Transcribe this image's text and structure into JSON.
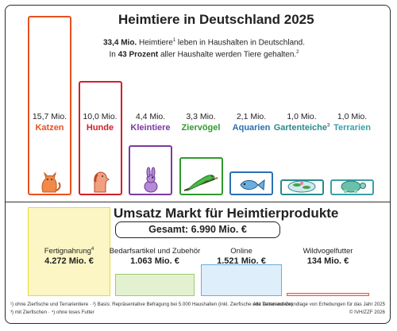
{
  "header": {
    "title": "Heimtiere in Deutschland 2025",
    "sub_line1_bold": "33,4 Mio.",
    "sub_line1_text": " Heimtiere",
    "sub_line1_sup": "1",
    "sub_line1_rest": " leben in Haushalten in Deutschland.",
    "sub_line2_start": "In ",
    "sub_line2_bold": "43 Prozent",
    "sub_line2_rest": " aller Haushalte werden Tiere gehalten.",
    "sub_line2_sup": "2"
  },
  "market": {
    "title": "Umsatz Markt für Heimtierprodukte",
    "total_text": "Gesamt: 6.990 Mio. €"
  },
  "footer": {
    "note_left_1": "¹) ohne Zierfische und Terrarientiere · ²) Basis: Repräsentative Befragung bei 5.000 Haushalten (inkl. Zierfische und Terrarientiere)",
    "note_left_2": "³) mit Zierfischen · ⁴) ohne loses Futter",
    "note_right_1": "Alle Daten auf Grundlage von Erhebungen für das Jahr 2025",
    "note_right_2": "© IVH/ZZF 2026"
  },
  "colors": {
    "katzen": "#e8501e",
    "hunde": "#d0202a",
    "kleintiere": "#7a3aa0",
    "ziervoegel": "#2f9a2f",
    "aquarien": "#2a6fb0",
    "gartenteiche": "#2a8a8c",
    "terrarien": "#3aa0a8",
    "fertignahrung": "#e6dc3c",
    "bedarf": "#9ccc68",
    "online": "#6aaee0",
    "wildvogel": "#e85a3c"
  },
  "chart_data": [
    {
      "type": "bar",
      "title": "Heimtiere in Deutschland 2025",
      "categories": [
        "Katzen",
        "Hunde",
        "Kleintiere",
        "Ziervögel",
        "Aquarien",
        "Gartenteiche",
        "Terrarien"
      ],
      "category_superscripts": [
        "",
        "",
        "",
        "",
        "",
        "3",
        ""
      ],
      "unit": "Mio.",
      "values": [
        15.7,
        10.0,
        4.4,
        3.3,
        2.1,
        1.0,
        1.0
      ],
      "value_labels": [
        "15,7 Mio.",
        "10,0 Mio.",
        "4,4 Mio.",
        "3,3 Mio.",
        "2,1 Mio.",
        "1,0 Mio.",
        "1,0 Mio."
      ],
      "icons": [
        "cat-icon",
        "dog-icon",
        "rabbit-icon",
        "parrot-icon",
        "fish-icon",
        "pond-icon",
        "turtle-icon"
      ],
      "ylim": [
        0,
        15.7
      ]
    },
    {
      "type": "bar",
      "title": "Umsatz Markt für Heimtierprodukte",
      "categories": [
        "Fertignahrung",
        "Bedarfsartikel und Zubehör",
        "Online",
        "Wildvogelfutter"
      ],
      "category_superscripts": [
        "4",
        "",
        "",
        ""
      ],
      "values": [
        4272,
        1063,
        1521,
        134
      ],
      "value_labels": [
        "4.272 Mio. €",
        "1.063 Mio. €",
        "1.521 Mio. €",
        "134 Mio. €"
      ],
      "unit": "Mio. €",
      "total": 6990,
      "ylim": [
        0,
        4272
      ]
    }
  ]
}
